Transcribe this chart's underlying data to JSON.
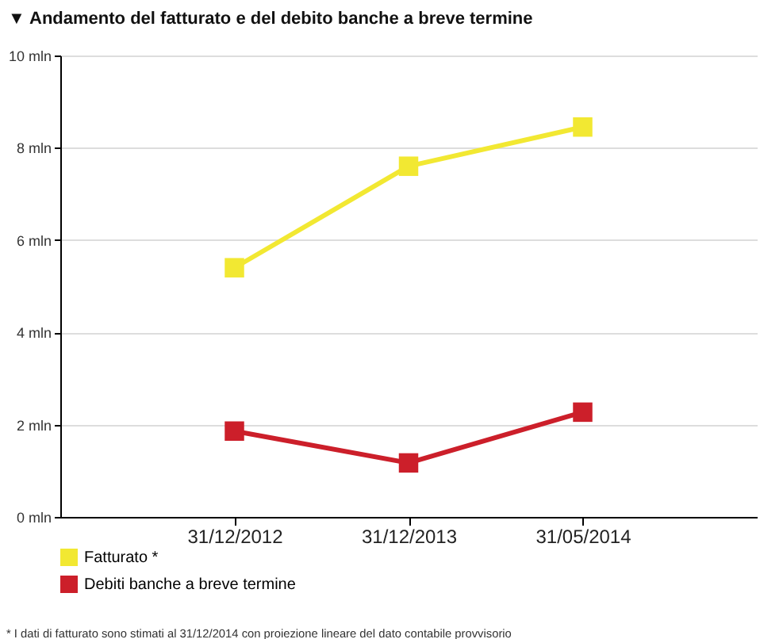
{
  "chart_data": {
    "type": "line",
    "title": "▼ Andamento del fatturato e del debito banche a breve termine",
    "categories": [
      "31/12/2012",
      "31/12/2013",
      "31/05/2014"
    ],
    "series": [
      {
        "name": "Fatturato *",
        "color": "#f2e832",
        "values": [
          5.4,
          7.6,
          8.45
        ]
      },
      {
        "name": "Debiti banche a breve termine",
        "color": "#cc1f2a",
        "values": [
          1.86,
          1.17,
          2.27
        ]
      }
    ],
    "ylim": [
      0,
      10
    ],
    "yticks": [
      {
        "value": 0,
        "label": "0 mln"
      },
      {
        "value": 2,
        "label": "2 mln"
      },
      {
        "value": 4,
        "label": "4 mln"
      },
      {
        "value": 6,
        "label": "6 mln"
      },
      {
        "value": 8,
        "label": "8 mln"
      },
      {
        "value": 10,
        "label": "10 mln"
      }
    ],
    "grid": "y",
    "legend": "bottom left",
    "marker": "square",
    "line_style": "solid",
    "annotations": [
      "* I dati di fatturato sono stimati al 31/12/2014 con proiezione lineare del dato contabile provvisorio"
    ]
  }
}
